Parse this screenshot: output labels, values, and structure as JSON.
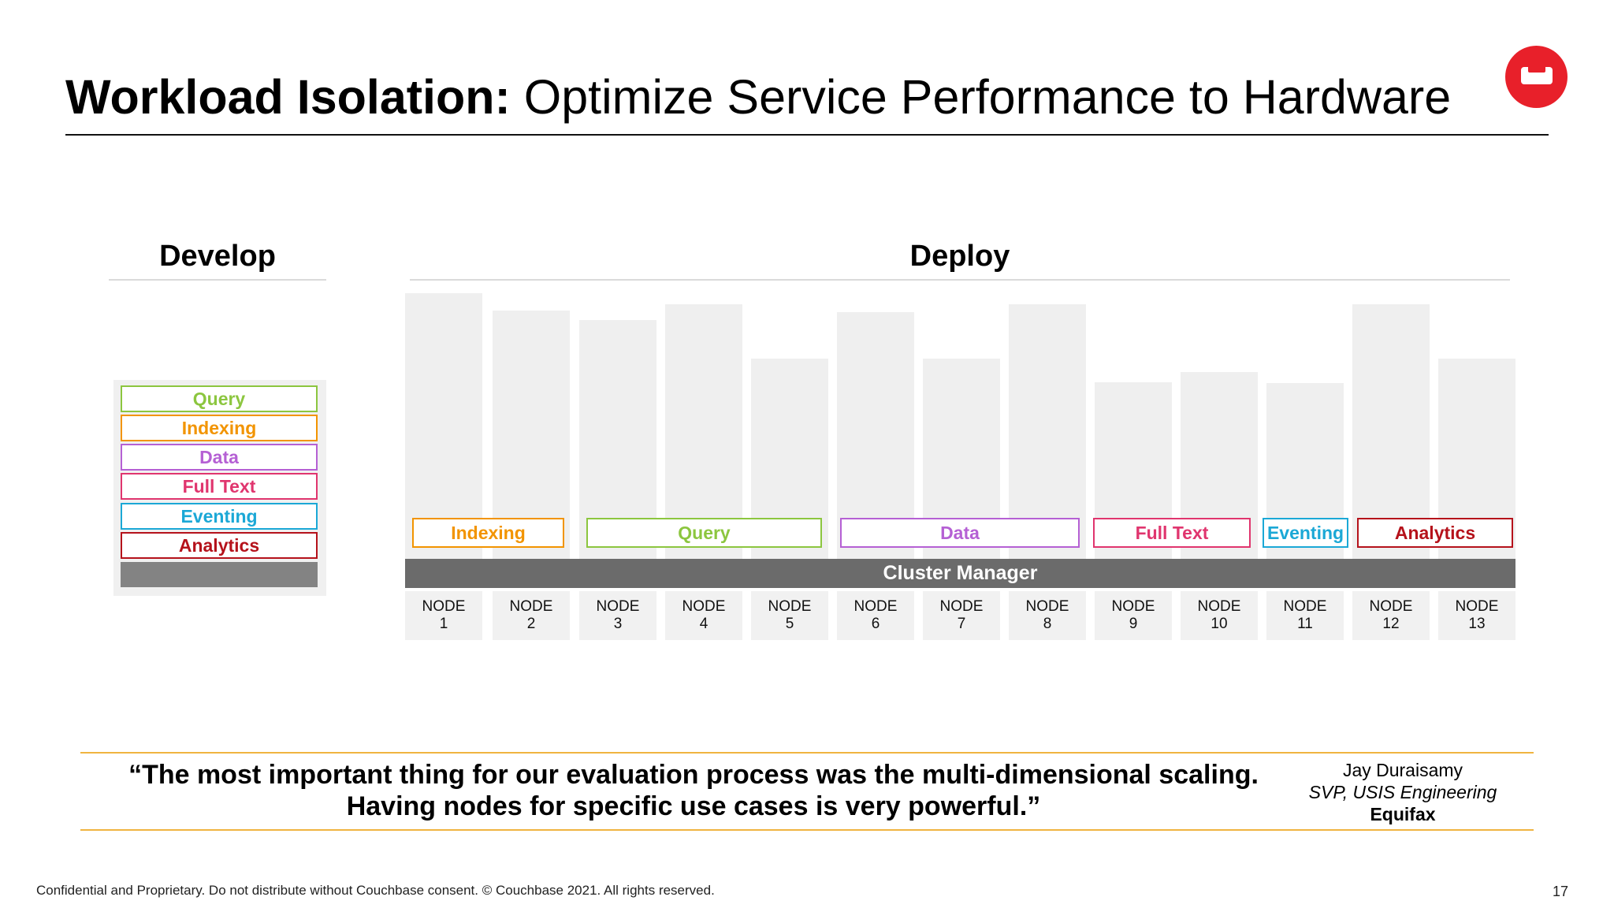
{
  "header": {
    "title_bold": "Workload Isolation:",
    "title_rest": " Optimize Service Performance to Hardware",
    "logo": "couchbase-logo-icon"
  },
  "develop": {
    "heading": "Develop",
    "stack": [
      {
        "label": "Query",
        "color": "#8cc63f"
      },
      {
        "label": "Indexing",
        "color": "#f29400"
      },
      {
        "label": "Data",
        "color": "#b560d4"
      },
      {
        "label": "Full Text",
        "color": "#e0356e"
      },
      {
        "label": "Eventing",
        "color": "#1ba8d6"
      },
      {
        "label": "Analytics",
        "color": "#b5121b"
      }
    ],
    "blank_bar_color": "#838383"
  },
  "deploy": {
    "heading": "Deploy",
    "cluster_manager": "Cluster Manager",
    "services": [
      {
        "label": "Indexing",
        "color": "#f29400"
      },
      {
        "label": "Query",
        "color": "#8cc63f"
      },
      {
        "label": "Data",
        "color": "#b560d4"
      },
      {
        "label": "Full Text",
        "color": "#e0356e"
      },
      {
        "label": "Eventing",
        "color": "#1ba8d6"
      },
      {
        "label": "Analytics",
        "color": "#b5121b"
      }
    ],
    "nodes": [
      {
        "name": "NODE",
        "num": "1"
      },
      {
        "name": "NODE",
        "num": "2"
      },
      {
        "name": "NODE",
        "num": "3"
      },
      {
        "name": "NODE",
        "num": "4"
      },
      {
        "name": "NODE",
        "num": "5"
      },
      {
        "name": "NODE",
        "num": "6"
      },
      {
        "name": "NODE",
        "num": "7"
      },
      {
        "name": "NODE",
        "num": "8"
      },
      {
        "name": "NODE",
        "num": "9"
      },
      {
        "name": "NODE",
        "num": "10"
      },
      {
        "name": "NODE",
        "num": "11"
      },
      {
        "name": "NODE",
        "num": "12"
      },
      {
        "name": "NODE",
        "num": "13"
      }
    ]
  },
  "quote": {
    "line1": "“The most important thing for our evaluation process was the multi-dimensional scaling.",
    "line2": "Having nodes for specific use cases is very powerful.”",
    "name": "Jay Duraisamy",
    "role": "SVP, USIS Engineering",
    "company": "Equifax"
  },
  "footer": {
    "text": "Confidential and Proprietary. Do not distribute without Couchbase consent. © Couchbase 2021. All rights reserved.",
    "page": "17"
  }
}
